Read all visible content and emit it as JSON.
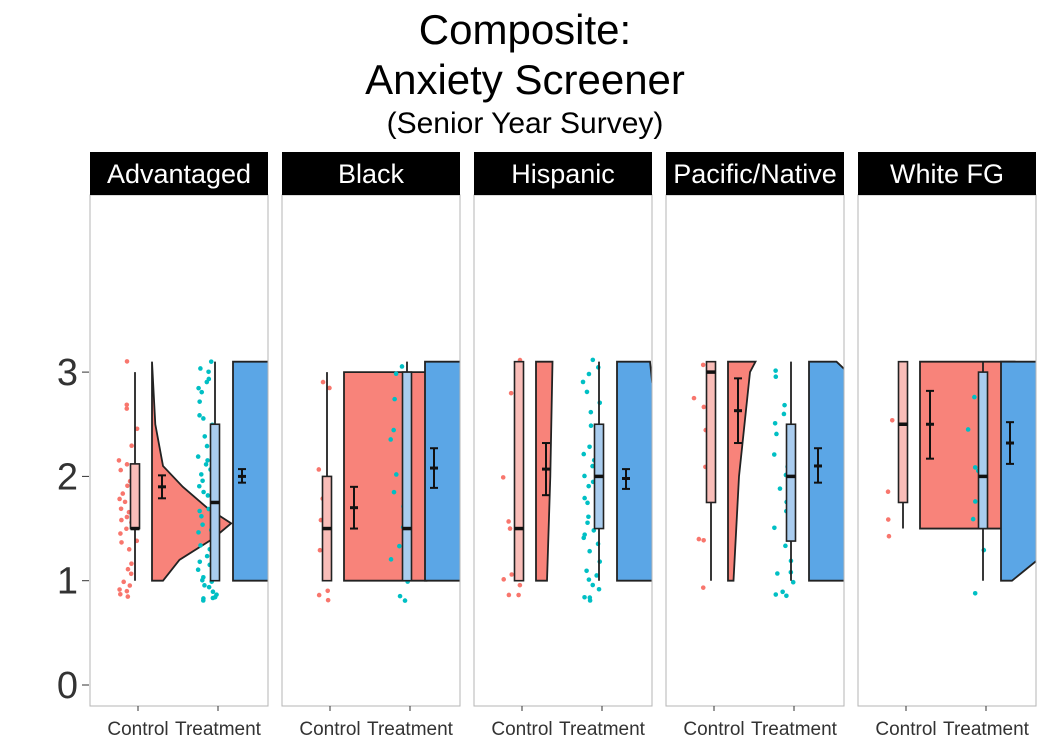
{
  "title": {
    "line1": "Composite:",
    "line2": "Anxiety Screener",
    "line3": "(Senior Year Survey)"
  },
  "colors": {
    "control": "#F8766D",
    "control_half": "#F8837A",
    "control_box": "#F9BDB8",
    "treatment": "#00BFC4",
    "treatment_half": "#5BA6E6",
    "treatment_box": "#A9CCEE",
    "strip": "#000000"
  },
  "chart_data": {
    "type": "raincloud",
    "ylim": [
      0,
      3.1
    ],
    "yticks": [
      0,
      1,
      2,
      3
    ],
    "groups": [
      "Control",
      "Treatment"
    ],
    "panels": [
      {
        "label": "Advantaged",
        "control": {
          "box": {
            "q1": 1.5,
            "median": 1.5,
            "q3": 2.12,
            "min": 1.0,
            "max": 3.0
          },
          "mean": 1.9,
          "ci": [
            1.79,
            2.01
          ],
          "density": [
            [
              1.0,
              0.0
            ],
            [
              1.0,
              0.1
            ],
            [
              1.2,
              0.25
            ],
            [
              1.4,
              0.55
            ],
            [
              1.55,
              0.72
            ],
            [
              1.7,
              0.5
            ],
            [
              1.9,
              0.28
            ],
            [
              2.1,
              0.1
            ],
            [
              2.5,
              0.03
            ],
            [
              3.1,
              0.0
            ]
          ],
          "points": [
            0.85,
            0.86,
            0.9,
            0.93,
            0.95,
            1.0,
            1.05,
            1.1,
            1.15,
            1.3,
            1.35,
            1.4,
            1.45,
            1.5,
            1.5,
            1.55,
            1.6,
            1.6,
            1.65,
            1.7,
            1.75,
            1.8,
            1.85,
            1.9,
            1.95,
            2.0,
            2.05,
            2.1,
            2.15,
            2.3,
            2.45,
            2.65,
            2.7,
            3.1
          ]
        },
        "treatment": {
          "box": {
            "q1": 1.0,
            "median": 1.75,
            "q3": 2.5,
            "min": 1.0,
            "max": 3.1
          },
          "mean": 2.0,
          "ci": [
            1.94,
            2.07
          ],
          "density": [
            [
              1.0,
              0.0
            ],
            [
              1.0,
              0.72
            ],
            [
              1.5,
              0.74
            ],
            [
              2.0,
              0.76
            ],
            [
              2.5,
              0.78
            ],
            [
              3.1,
              0.8
            ]
          ],
          "points": [
            0.8,
            0.82,
            0.84,
            0.86,
            0.88,
            0.9,
            0.92,
            0.95,
            1.0,
            1.0,
            1.05,
            1.1,
            1.15,
            1.2,
            1.25,
            1.3,
            1.35,
            1.4,
            1.45,
            1.5,
            1.5,
            1.55,
            1.6,
            1.65,
            1.7,
            1.75,
            1.8,
            1.85,
            1.9,
            1.95,
            2.0,
            2.0,
            2.05,
            2.1,
            2.15,
            2.2,
            2.3,
            2.4,
            2.5,
            2.55,
            2.6,
            2.7,
            2.8,
            2.85,
            2.9,
            2.95,
            3.0,
            3.05,
            3.1
          ]
        }
      },
      {
        "label": "Black",
        "control": {
          "box": {
            "q1": 1.0,
            "median": 1.5,
            "q3": 2.0,
            "min": 1.0,
            "max": 3.0
          },
          "mean": 1.7,
          "ci": [
            1.5,
            1.9
          ],
          "density": [
            [
              1.0,
              0.0
            ],
            [
              1.0,
              0.75
            ],
            [
              2.0,
              0.8
            ],
            [
              3.0,
              0.82
            ],
            [
              3.0,
              0.0
            ]
          ],
          "points": [
            0.82,
            0.88,
            0.9,
            1.3,
            1.45,
            1.6,
            1.8,
            2.05,
            2.85,
            2.9
          ]
        },
        "treatment": {
          "box": {
            "q1": 1.0,
            "median": 1.5,
            "q3": 3.0,
            "min": 1.0,
            "max": 3.1
          },
          "mean": 2.08,
          "ci": [
            1.89,
            2.27
          ],
          "density": [
            [
              1.0,
              0.0
            ],
            [
              1.0,
              0.8
            ],
            [
              2.0,
              0.82
            ],
            [
              3.1,
              0.84
            ]
          ],
          "points": [
            0.82,
            0.85,
            1.0,
            1.2,
            1.35,
            1.5,
            1.7,
            1.85,
            2.0,
            2.15,
            2.35,
            2.45,
            2.75,
            3.0,
            3.05
          ]
        }
      },
      {
        "label": "Hispanic",
        "control": {
          "box": {
            "q1": 1.0,
            "median": 1.5,
            "q3": 3.12,
            "min": 1.0,
            "max": 3.12
          },
          "mean": 2.07,
          "ci": [
            1.82,
            2.32
          ],
          "density": [
            [
              1.0,
              0.0
            ],
            [
              1.0,
              0.1
            ],
            [
              2.0,
              0.13
            ],
            [
              3.1,
              0.15
            ]
          ],
          "points": [
            0.85,
            0.86,
            0.96,
            1.0,
            1.05,
            1.5,
            1.55,
            2.0,
            2.8,
            3.1
          ]
        },
        "treatment": {
          "box": {
            "q1": 1.5,
            "median": 2.0,
            "q3": 2.5,
            "min": 1.0,
            "max": 3.1
          },
          "mean": 1.98,
          "ci": [
            1.88,
            2.07
          ],
          "density": [
            [
              1.0,
              0.0
            ],
            [
              1.0,
              0.55
            ],
            [
              1.3,
              0.62
            ],
            [
              1.6,
              0.78
            ],
            [
              2.0,
              0.8
            ],
            [
              2.3,
              0.65
            ],
            [
              2.6,
              0.42
            ],
            [
              2.9,
              0.32
            ],
            [
              3.1,
              0.3
            ]
          ],
          "points": [
            0.8,
            0.82,
            0.85,
            0.9,
            0.95,
            1.0,
            1.05,
            1.1,
            1.2,
            1.3,
            1.35,
            1.4,
            1.45,
            1.5,
            1.55,
            1.6,
            1.65,
            1.7,
            1.75,
            1.8,
            1.85,
            1.9,
            1.95,
            2.0,
            2.05,
            2.1,
            2.15,
            2.2,
            2.3,
            2.4,
            2.5,
            2.6,
            2.7,
            2.8,
            2.9,
            3.0,
            3.05,
            3.1
          ]
        }
      },
      {
        "label": "Pacific/Native",
        "control": {
          "box": {
            "q1": 1.75,
            "median": 3.0,
            "q3": 3.1,
            "min": 1.0,
            "max": 3.1
          },
          "mean": 2.63,
          "ci": [
            2.32,
            2.94
          ],
          "density": [
            [
              1.0,
              0.0
            ],
            [
              1.0,
              0.05
            ],
            [
              2.0,
              0.1
            ],
            [
              3.0,
              0.2
            ],
            [
              3.1,
              0.25
            ]
          ],
          "points": [
            0.92,
            1.38,
            1.4,
            2.08,
            2.45,
            2.65,
            2.75,
            3.05
          ]
        },
        "treatment": {
          "box": {
            "q1": 1.38,
            "median": 2.0,
            "q3": 2.5,
            "min": 1.0,
            "max": 3.1
          },
          "mean": 2.1,
          "ci": [
            1.94,
            2.27
          ],
          "density": [
            [
              1.0,
              0.0
            ],
            [
              1.0,
              0.8
            ],
            [
              1.5,
              0.85
            ],
            [
              2.0,
              0.88
            ],
            [
              2.5,
              0.82
            ],
            [
              3.0,
              0.35
            ],
            [
              3.1,
              0.25
            ]
          ],
          "points": [
            0.84,
            0.86,
            0.9,
            1.0,
            1.05,
            1.1,
            1.2,
            1.35,
            1.5,
            1.65,
            1.75,
            1.9,
            2.0,
            2.1,
            2.2,
            2.4,
            2.5,
            2.6,
            2.7,
            2.95,
            3.0
          ]
        }
      },
      {
        "label": "White FG",
        "control": {
          "box": {
            "q1": 1.75,
            "median": 2.5,
            "q3": 3.1,
            "min": 1.5,
            "max": 3.1
          },
          "mean": 2.5,
          "ci": [
            2.17,
            2.82
          ],
          "density": [
            [
              1.5,
              0.0
            ],
            [
              1.5,
              0.82
            ],
            [
              2.5,
              0.84
            ],
            [
              3.1,
              0.86
            ]
          ],
          "points": [
            1.42,
            1.58,
            1.85,
            2.55
          ]
        },
        "treatment": {
          "box": {
            "q1": 1.5,
            "median": 2.0,
            "q3": 3.0,
            "min": 1.0,
            "max": 3.1
          },
          "mean": 2.32,
          "ci": [
            2.12,
            2.52
          ],
          "density": [
            [
              1.0,
              0.0
            ],
            [
              1.0,
              0.1
            ],
            [
              1.3,
              0.45
            ],
            [
              1.6,
              0.75
            ],
            [
              2.0,
              0.85
            ],
            [
              2.5,
              0.85
            ],
            [
              3.1,
              0.8
            ]
          ],
          "points": [
            0.88,
            1.3,
            1.6,
            1.75,
            1.95,
            2.05,
            2.1,
            2.45,
            2.75,
            2.95
          ]
        }
      }
    ]
  }
}
